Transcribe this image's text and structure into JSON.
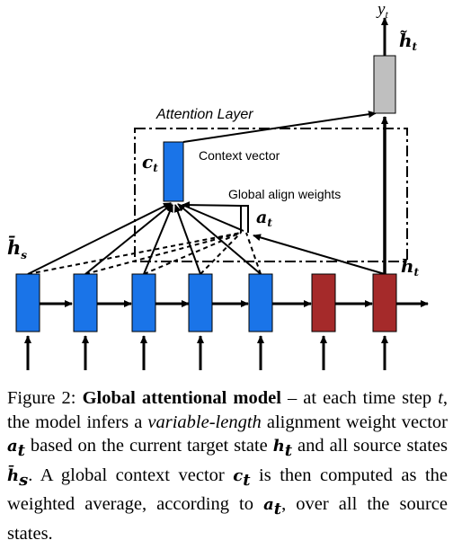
{
  "diagram": {
    "output_label": "y",
    "output_sub": "t",
    "htilde_label": "h̃",
    "htilde_sub": "t",
    "attention_layer_label": "Attention Layer",
    "ct_label": "c",
    "ct_sub": "t",
    "context_vector_label": "Context vector",
    "global_align_label": "Global align weights",
    "at_label": "a",
    "at_sub": "t",
    "hs_label": "h̄",
    "hs_sub": "s",
    "ht_label": "h",
    "ht_sub": "t",
    "colors": {
      "source_cell": "#1a74e8",
      "target_cell": "#a52a2a",
      "attentional_cell": "#bfbfbf",
      "line": "#000000"
    }
  },
  "caption": {
    "fig_label": "Figure 2:",
    "bold_title": "Global attentional model",
    "t1": " – at each time step ",
    "t_var": "t",
    "t2": ", the model infers a ",
    "ital1": "variable-length",
    "t3": " alignment weight vector ",
    "a_sym": "a",
    "a_sub": "t",
    "t4": " based on the current target state ",
    "h_sym": "h",
    "h_sub": "t",
    "t5": " and all source states ",
    "hbar_sym": "h̄",
    "hbar_sub": "s",
    "t6": ". A global context vector ",
    "c_sym": "c",
    "c_sub": "t",
    "t7": " is then computed as the weighted average, according to ",
    "a2_sym": "a",
    "a2_sub": "t",
    "t8": ", over all the source states."
  }
}
